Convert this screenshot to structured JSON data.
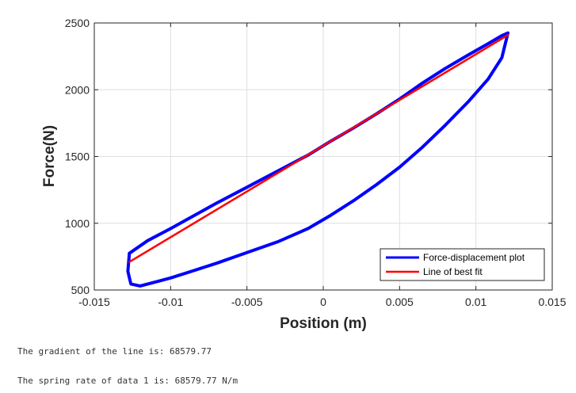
{
  "chart_data": {
    "type": "line",
    "title": "",
    "xlabel": "Position (m)",
    "ylabel": "Force(N)",
    "xlim": [
      -0.015,
      0.015
    ],
    "ylim": [
      500,
      2500
    ],
    "xticks": [
      -0.015,
      -0.01,
      -0.005,
      0,
      0.005,
      0.01,
      0.015
    ],
    "xtick_labels": [
      "-0.015",
      "-0.01",
      "-0.005",
      "0",
      "0.005",
      "0.01",
      "0.015"
    ],
    "yticks": [
      500,
      1000,
      1500,
      2000,
      2500
    ],
    "ytick_labels": [
      "500",
      "1000",
      "1500",
      "2000",
      "2500"
    ],
    "grid": true,
    "legend_placement": "bottom-right",
    "series": [
      {
        "name": "Force-displacement plot",
        "color": "#0000ff",
        "x": [
          -0.0127,
          -0.0115,
          -0.01,
          -0.0085,
          -0.007,
          -0.005,
          -0.003,
          -0.001,
          0.0005,
          0.002,
          0.0035,
          0.005,
          0.0065,
          0.008,
          0.0095,
          0.0108,
          0.0117,
          0.0121,
          0.0117,
          0.0108,
          0.0095,
          0.008,
          0.0065,
          0.005,
          0.0035,
          0.002,
          0.0005,
          -0.001,
          -0.003,
          -0.005,
          -0.007,
          -0.0085,
          -0.01,
          -0.011,
          -0.012,
          -0.0126,
          -0.0128,
          -0.0127
        ],
        "y": [
          775,
          870,
          960,
          1055,
          1150,
          1270,
          1390,
          1510,
          1615,
          1715,
          1820,
          1930,
          2050,
          2160,
          2260,
          2345,
          2405,
          2425,
          2240,
          2080,
          1910,
          1735,
          1570,
          1420,
          1290,
          1170,
          1060,
          960,
          860,
          780,
          700,
          645,
          590,
          560,
          530,
          545,
          640,
          775
        ]
      },
      {
        "name": "Line of best fit",
        "color": "#ff0000",
        "x": [
          -0.0127,
          0.0121
        ],
        "y": [
          710,
          2410
        ]
      }
    ]
  },
  "console": {
    "gradient_line": "The gradient of the line is: 68579.77",
    "spring_line": "The spring rate of data 1 is: 68579.77 N/m"
  }
}
